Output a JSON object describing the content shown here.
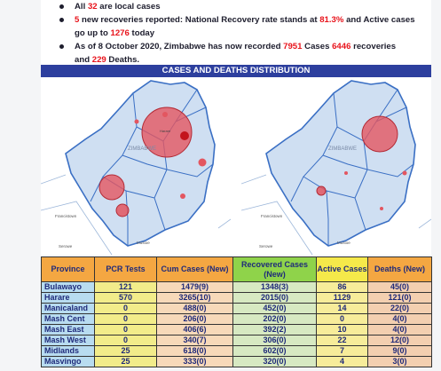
{
  "bullets": [
    {
      "pre": "All ",
      "num": "32",
      "post": " are local cases",
      "cont": ""
    },
    {
      "pre": "",
      "num": "5",
      "post": " new recoveries reported: National Recovery rate stands at ",
      "num2": "81.3%",
      "post2": " and Active cases",
      "cont_pre": "go up to ",
      "cont_num": "1276",
      "cont_post": " today"
    },
    {
      "pre": "As of 8 October 2020, Zimbabwe has now recorded ",
      "num": "7951",
      "post": " Cases ",
      "num2": "6446",
      "post2": " recoveries",
      "cont_pre": "and ",
      "cont_num": "229",
      "cont_post": " Deaths."
    }
  ],
  "banner": "CASES AND DEATHS DISTRIBUTION",
  "map_labels": {
    "harare": "Harare",
    "zimbabwe": "ZIMBABWE",
    "francistown": "Francistown",
    "serowe": "Serowe",
    "mustoe": "Mustoe",
    "bulawayo": "Bulawayo",
    "gweru": "Gweru"
  },
  "colors": {
    "banner": "#2d3f9e",
    "highlight": "#e8141c",
    "circle": "#e35660"
  },
  "table": {
    "headers": [
      "Province",
      "PCR Tests",
      "Cum Cases (New)",
      "Recovered Cases (New)",
      "Active Cases",
      "Deaths (New)"
    ],
    "rows": [
      [
        "Bulawayo",
        "121",
        "1479(9)",
        "1348(3)",
        "86",
        "45(0)"
      ],
      [
        "Harare",
        "570",
        "3265(10)",
        "2015(0)",
        "1129",
        "121(0)"
      ],
      [
        "Manicaland",
        "0",
        "488(0)",
        "452(0)",
        "14",
        "22(0)"
      ],
      [
        "Mash Cent",
        "0",
        "206(0)",
        "202(0)",
        "0",
        "4(0)"
      ],
      [
        "Mash East",
        "0",
        "406(6)",
        "392(2)",
        "10",
        "4(0)"
      ],
      [
        "Mash West",
        "0",
        "340(7)",
        "306(0)",
        "22",
        "12(0)"
      ],
      [
        "Midlands",
        "25",
        "618(0)",
        "602(0)",
        "7",
        "9(0)"
      ],
      [
        "Masvingo",
        "25",
        "333(0)",
        "320(0)",
        "4",
        "3(0)"
      ]
    ]
  }
}
